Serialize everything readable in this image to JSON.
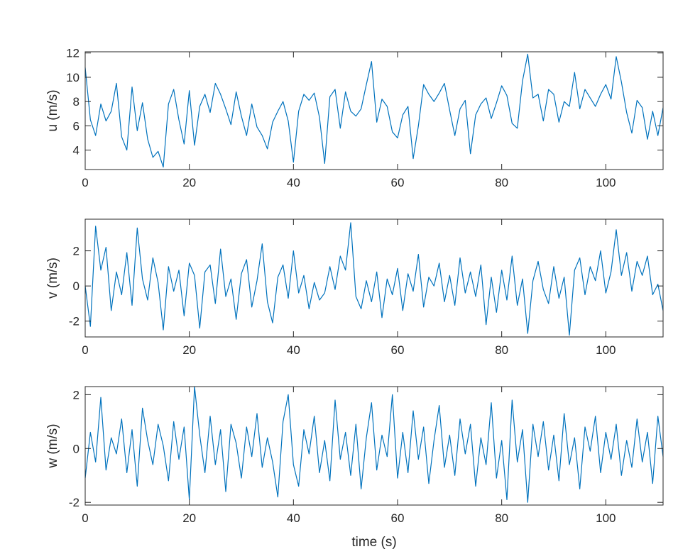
{
  "chart_data": [
    {
      "type": "line",
      "ylabel": "u (m/s)",
      "xlim": [
        0,
        111
      ],
      "ylim": [
        2.4,
        12.1
      ],
      "xticks": [
        "0",
        "20",
        "40",
        "60",
        "80",
        "100"
      ],
      "yticks": [
        "4",
        "6",
        "8",
        "10",
        "12"
      ],
      "grid": false,
      "color": "#0072BD",
      "series": [
        {
          "x": [
            0,
            1,
            2,
            3,
            4,
            5,
            6,
            7,
            8,
            9,
            10,
            11,
            12,
            13,
            14,
            15,
            16,
            17,
            18,
            19,
            20,
            21,
            22,
            23,
            24,
            25,
            26,
            27,
            28,
            29,
            30,
            31,
            32,
            33,
            34,
            35,
            36,
            37,
            38,
            39,
            40,
            41,
            42,
            43,
            44,
            45,
            46,
            47,
            48,
            49,
            50,
            51,
            52,
            53,
            54,
            55,
            56,
            57,
            58,
            59,
            60,
            61,
            62,
            63,
            64,
            65,
            66,
            67,
            68,
            69,
            70,
            71,
            72,
            73,
            74,
            75,
            76,
            77,
            78,
            79,
            80,
            81,
            82,
            83,
            84,
            85,
            86,
            87,
            88,
            89,
            90,
            91,
            92,
            93,
            94,
            95,
            96,
            97,
            98,
            99,
            100,
            101,
            102,
            103,
            104,
            105,
            106,
            107,
            108,
            109,
            110,
            111
          ],
          "y": [
            10.8,
            6.5,
            5.2,
            7.8,
            6.4,
            7.2,
            9.5,
            5.1,
            4.0,
            9.2,
            5.6,
            7.9,
            4.9,
            3.4,
            3.9,
            2.6,
            7.8,
            9.0,
            6.5,
            4.5,
            8.9,
            4.4,
            7.6,
            8.6,
            7.1,
            9.5,
            8.6,
            7.4,
            6.1,
            8.8,
            6.8,
            5.2,
            7.8,
            5.9,
            5.2,
            4.1,
            6.3,
            7.2,
            8.0,
            6.4,
            3.0,
            7.2,
            8.6,
            8.1,
            8.7,
            6.7,
            2.9,
            8.4,
            9.0,
            5.8,
            8.8,
            7.2,
            6.8,
            7.4,
            9.4,
            11.3,
            6.3,
            8.2,
            7.6,
            5.5,
            5.0,
            6.9,
            7.6,
            3.3,
            6.0,
            9.4,
            8.6,
            8.0,
            8.7,
            9.5,
            7.3,
            5.2,
            7.4,
            8.1,
            3.7,
            6.9,
            7.8,
            8.3,
            6.6,
            7.9,
            9.3,
            8.5,
            6.2,
            5.8,
            9.7,
            11.9,
            8.3,
            8.6,
            6.4,
            9.0,
            8.6,
            6.3,
            8.0,
            7.6,
            10.4,
            7.4,
            9.0,
            8.3,
            7.6,
            8.6,
            9.4,
            8.2,
            11.7,
            9.6,
            7.1,
            5.4,
            8.1,
            7.5,
            4.9,
            7.2,
            5.2,
            7.5
          ]
        }
      ]
    },
    {
      "type": "line",
      "ylabel": "v (m/s)",
      "xlim": [
        0,
        111
      ],
      "ylim": [
        -2.9,
        3.8
      ],
      "xticks": [
        "0",
        "20",
        "40",
        "60",
        "80",
        "100"
      ],
      "yticks": [
        "-2",
        "0",
        "2"
      ],
      "grid": false,
      "color": "#0072BD",
      "series": [
        {
          "x": [
            0,
            1,
            2,
            3,
            4,
            5,
            6,
            7,
            8,
            9,
            10,
            11,
            12,
            13,
            14,
            15,
            16,
            17,
            18,
            19,
            20,
            21,
            22,
            23,
            24,
            25,
            26,
            27,
            28,
            29,
            30,
            31,
            32,
            33,
            34,
            35,
            36,
            37,
            38,
            39,
            40,
            41,
            42,
            43,
            44,
            45,
            46,
            47,
            48,
            49,
            50,
            51,
            52,
            53,
            54,
            55,
            56,
            57,
            58,
            59,
            60,
            61,
            62,
            63,
            64,
            65,
            66,
            67,
            68,
            69,
            70,
            71,
            72,
            73,
            74,
            75,
            76,
            77,
            78,
            79,
            80,
            81,
            82,
            83,
            84,
            85,
            86,
            87,
            88,
            89,
            90,
            91,
            92,
            93,
            94,
            95,
            96,
            97,
            98,
            99,
            100,
            101,
            102,
            103,
            104,
            105,
            106,
            107,
            108,
            109,
            110,
            111
          ],
          "y": [
            0.0,
            -2.3,
            3.4,
            0.9,
            2.2,
            -1.4,
            0.8,
            -0.5,
            1.9,
            -1.1,
            3.3,
            0.4,
            -0.8,
            1.6,
            0.2,
            -2.5,
            1.1,
            -0.3,
            0.9,
            -1.7,
            1.3,
            0.6,
            -2.4,
            0.8,
            1.2,
            -1.0,
            2.1,
            -0.6,
            0.4,
            -1.9,
            0.7,
            1.5,
            -1.2,
            0.3,
            2.4,
            -0.9,
            -2.1,
            0.5,
            1.2,
            -0.7,
            2.0,
            -0.4,
            0.6,
            -1.3,
            0.2,
            -0.8,
            -0.4,
            1.1,
            -0.2,
            1.7,
            0.9,
            3.6,
            -0.6,
            -1.3,
            0.3,
            -0.9,
            0.8,
            -1.8,
            0.4,
            -0.5,
            1.0,
            -1.4,
            0.7,
            -0.3,
            1.8,
            -1.2,
            0.5,
            0.0,
            1.3,
            -0.9,
            0.6,
            -1.1,
            1.6,
            -0.4,
            0.8,
            -0.6,
            1.2,
            -2.2,
            0.5,
            -1.5,
            0.9,
            -0.8,
            1.7,
            -1.1,
            0.4,
            -2.7,
            0.3,
            1.4,
            -0.2,
            -1.0,
            1.1,
            -0.7,
            0.5,
            -2.8,
            0.9,
            1.6,
            -0.5,
            1.1,
            0.3,
            2.0,
            -0.4,
            0.8,
            3.2,
            0.6,
            1.9,
            -0.3,
            1.4,
            0.6,
            1.7,
            -0.5,
            0.1,
            -1.4
          ]
        }
      ]
    },
    {
      "type": "line",
      "ylabel": "w (m/s)",
      "xlabel": "time (s)",
      "xlim": [
        0,
        111
      ],
      "ylim": [
        -2.1,
        2.3
      ],
      "xticks": [
        "0",
        "20",
        "40",
        "60",
        "80",
        "100"
      ],
      "yticks": [
        "-2",
        "0",
        "2"
      ],
      "grid": false,
      "color": "#0072BD",
      "series": [
        {
          "x": [
            0,
            1,
            2,
            3,
            4,
            5,
            6,
            7,
            8,
            9,
            10,
            11,
            12,
            13,
            14,
            15,
            16,
            17,
            18,
            19,
            20,
            21,
            22,
            23,
            24,
            25,
            26,
            27,
            28,
            29,
            30,
            31,
            32,
            33,
            34,
            35,
            36,
            37,
            38,
            39,
            40,
            41,
            42,
            43,
            44,
            45,
            46,
            47,
            48,
            49,
            50,
            51,
            52,
            53,
            54,
            55,
            56,
            57,
            58,
            59,
            60,
            61,
            62,
            63,
            64,
            65,
            66,
            67,
            68,
            69,
            70,
            71,
            72,
            73,
            74,
            75,
            76,
            77,
            78,
            79,
            80,
            81,
            82,
            83,
            84,
            85,
            86,
            87,
            88,
            89,
            90,
            91,
            92,
            93,
            94,
            95,
            96,
            97,
            98,
            99,
            100,
            101,
            102,
            103,
            104,
            105,
            106,
            107,
            108,
            109,
            110,
            111
          ],
          "y": [
            -1.1,
            0.6,
            -0.5,
            1.9,
            -0.8,
            0.4,
            -0.2,
            1.1,
            -0.9,
            0.7,
            -1.4,
            1.5,
            0.3,
            -0.6,
            0.9,
            0.1,
            -1.2,
            1.0,
            -0.4,
            0.8,
            -1.9,
            2.3,
            0.5,
            -0.9,
            1.2,
            -0.6,
            0.7,
            -1.6,
            0.9,
            0.2,
            -1.1,
            0.8,
            -0.3,
            1.3,
            -0.7,
            0.4,
            -0.5,
            -1.8,
            1.0,
            2.0,
            -0.6,
            -1.4,
            0.7,
            -0.2,
            1.2,
            -0.9,
            0.3,
            -1.2,
            1.8,
            -0.4,
            0.6,
            -1.0,
            0.9,
            -1.5,
            0.4,
            1.7,
            -0.8,
            0.5,
            -0.3,
            2.0,
            -1.1,
            0.6,
            -0.9,
            1.4,
            -0.4,
            0.8,
            -1.3,
            0.3,
            1.6,
            -0.7,
            0.5,
            -1.0,
            1.1,
            -0.2,
            0.9,
            -1.4,
            0.4,
            -0.6,
            1.7,
            -1.1,
            0.3,
            -1.9,
            1.8,
            -0.5,
            0.7,
            -2.0,
            0.9,
            -0.3,
            1.0,
            -0.8,
            0.5,
            -1.2,
            1.3,
            -0.6,
            0.4,
            -1.5,
            0.8,
            -0.1,
            1.2,
            -0.9,
            0.6,
            -0.4,
            0.9,
            -1.0,
            0.3,
            -0.7,
            1.1,
            -0.5,
            0.6,
            -1.3,
            1.2,
            -0.3
          ]
        }
      ]
    }
  ]
}
